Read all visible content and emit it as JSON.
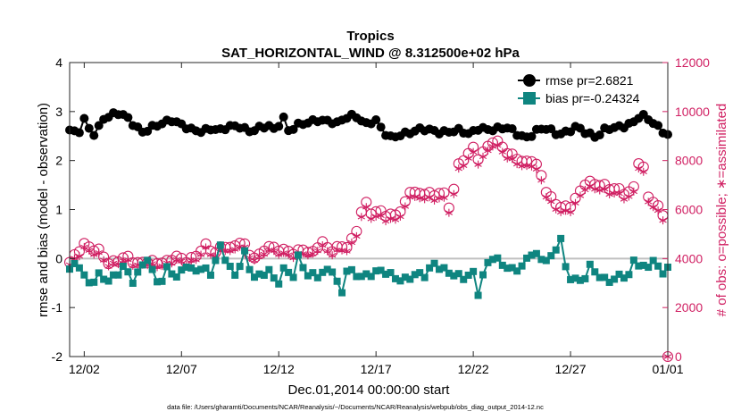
{
  "chart_data": {
    "type": "line",
    "title": "Tropics",
    "subtitle": "SAT_HORIZONTAL_WIND @ 8.312500e+02 hPa",
    "xlabel": "Dec.01,2014 00:00:00 start",
    "ylabel": "rmse and bias (model - observation)",
    "y2label": "# of obs: o=possible; ∗=assimilated",
    "x_ticks": [
      "12/02",
      "12/07",
      "12/12",
      "12/17",
      "12/22",
      "12/27",
      "01/01"
    ],
    "x_tick_days": [
      1,
      6,
      11,
      16,
      21,
      26,
      31
    ],
    "xlim": [
      0.25,
      31.0
    ],
    "ylim": [
      -2,
      4
    ],
    "y_ticks": [
      "-2",
      "-1",
      "0",
      "1",
      "2",
      "3",
      "4"
    ],
    "y2lim": [
      0,
      12000
    ],
    "y2_ticks": [
      "0",
      "2000",
      "4000",
      "6000",
      "8000",
      "10000",
      "12000"
    ],
    "zero_line": 0,
    "series": [
      {
        "name": "rmse pr=2.6821",
        "axis": "left",
        "color": "#000000",
        "marker": "circle",
        "anchors": [
          [
            0.25,
            2.6
          ],
          [
            0.6,
            2.55
          ],
          [
            0.9,
            2.65
          ],
          [
            1.05,
            2.95
          ],
          [
            1.3,
            2.6
          ],
          [
            1.6,
            2.55
          ],
          [
            1.9,
            2.85
          ],
          [
            2.3,
            2.9
          ],
          [
            2.7,
            2.95
          ],
          [
            3.1,
            2.9
          ],
          [
            3.5,
            2.75
          ],
          [
            4.0,
            2.6
          ],
          [
            4.5,
            2.7
          ],
          [
            5.0,
            2.75
          ],
          [
            5.5,
            2.8
          ],
          [
            6.0,
            2.72
          ],
          [
            6.5,
            2.65
          ],
          [
            7.0,
            2.62
          ],
          [
            7.5,
            2.65
          ],
          [
            8.0,
            2.6
          ],
          [
            8.5,
            2.68
          ],
          [
            9.0,
            2.7
          ],
          [
            9.5,
            2.62
          ],
          [
            10.0,
            2.68
          ],
          [
            10.5,
            2.7
          ],
          [
            10.9,
            2.55
          ],
          [
            11.15,
            2.95
          ],
          [
            11.5,
            2.6
          ],
          [
            12.0,
            2.75
          ],
          [
            12.5,
            2.8
          ],
          [
            13.0,
            2.82
          ],
          [
            13.5,
            2.78
          ],
          [
            14.0,
            2.75
          ],
          [
            14.5,
            2.9
          ],
          [
            14.9,
            2.95
          ],
          [
            15.5,
            2.75
          ],
          [
            16.0,
            2.8
          ],
          [
            16.4,
            2.55
          ],
          [
            16.8,
            2.45
          ],
          [
            17.3,
            2.55
          ],
          [
            17.8,
            2.6
          ],
          [
            18.3,
            2.65
          ],
          [
            18.8,
            2.6
          ],
          [
            19.3,
            2.55
          ],
          [
            19.8,
            2.6
          ],
          [
            20.3,
            2.65
          ],
          [
            20.8,
            2.55
          ],
          [
            21.3,
            2.65
          ],
          [
            21.8,
            2.6
          ],
          [
            22.3,
            2.65
          ],
          [
            22.8,
            2.7
          ],
          [
            23.3,
            2.55
          ],
          [
            23.8,
            2.45
          ],
          [
            24.3,
            2.6
          ],
          [
            24.8,
            2.65
          ],
          [
            25.3,
            2.55
          ],
          [
            25.8,
            2.6
          ],
          [
            26.3,
            2.7
          ],
          [
            26.8,
            2.55
          ],
          [
            27.3,
            2.45
          ],
          [
            27.8,
            2.65
          ],
          [
            28.3,
            2.7
          ],
          [
            28.8,
            2.72
          ],
          [
            29.3,
            2.78
          ],
          [
            29.6,
            2.92
          ],
          [
            29.9,
            2.85
          ],
          [
            30.3,
            2.75
          ],
          [
            30.7,
            2.62
          ],
          [
            31.0,
            2.55
          ]
        ]
      },
      {
        "name": "bias pr=-0.24324",
        "axis": "left",
        "color": "#0f8580",
        "marker": "square",
        "anchors": [
          [
            0.25,
            -0.25
          ],
          [
            0.7,
            -0.1
          ],
          [
            1.0,
            -0.35
          ],
          [
            1.3,
            -0.5
          ],
          [
            1.7,
            -0.3
          ],
          [
            2.2,
            -0.45
          ],
          [
            2.6,
            -0.4
          ],
          [
            3.0,
            -0.2
          ],
          [
            3.5,
            -0.45
          ],
          [
            3.9,
            -0.2
          ],
          [
            4.2,
            0.1
          ],
          [
            4.5,
            -0.25
          ],
          [
            4.9,
            -0.55
          ],
          [
            5.3,
            -0.2
          ],
          [
            5.8,
            -0.45
          ],
          [
            6.2,
            -0.1
          ],
          [
            6.6,
            -0.25
          ],
          [
            7.0,
            -0.15
          ],
          [
            7.5,
            -0.3
          ],
          [
            8.0,
            0.2
          ],
          [
            8.4,
            -0.15
          ],
          [
            8.8,
            -0.4
          ],
          [
            9.2,
            0.2
          ],
          [
            9.6,
            -0.3
          ],
          [
            10.0,
            -0.35
          ],
          [
            10.5,
            -0.25
          ],
          [
            10.9,
            -0.6
          ],
          [
            11.3,
            -0.2
          ],
          [
            11.7,
            -0.4
          ],
          [
            12.0,
            0.05
          ],
          [
            12.5,
            -0.3
          ],
          [
            13.0,
            -0.35
          ],
          [
            13.4,
            -0.3
          ],
          [
            13.8,
            -0.25
          ],
          [
            14.2,
            -0.8
          ],
          [
            14.5,
            -0.2
          ],
          [
            15.0,
            -0.3
          ],
          [
            15.5,
            -0.35
          ],
          [
            16.0,
            -0.3
          ],
          [
            16.5,
            -0.3
          ],
          [
            17.0,
            -0.4
          ],
          [
            17.5,
            -0.4
          ],
          [
            18.0,
            -0.3
          ],
          [
            18.5,
            -0.35
          ],
          [
            19.0,
            -0.15
          ],
          [
            19.5,
            -0.25
          ],
          [
            20.0,
            -0.3
          ],
          [
            20.5,
            -0.35
          ],
          [
            21.0,
            -0.3
          ],
          [
            21.3,
            -0.8
          ],
          [
            21.6,
            -0.2
          ],
          [
            22.0,
            0.0
          ],
          [
            22.5,
            -0.1
          ],
          [
            23.0,
            -0.2
          ],
          [
            23.5,
            -0.15
          ],
          [
            24.0,
            0.1
          ],
          [
            24.5,
            -0.05
          ],
          [
            25.0,
            0.0
          ],
          [
            25.5,
            0.45
          ],
          [
            25.8,
            -0.3
          ],
          [
            26.2,
            -0.4
          ],
          [
            26.6,
            -0.5
          ],
          [
            27.0,
            -0.2
          ],
          [
            27.4,
            -0.35
          ],
          [
            27.8,
            -0.45
          ],
          [
            28.2,
            -0.4
          ],
          [
            28.6,
            -0.3
          ],
          [
            29.0,
            -0.35
          ],
          [
            29.3,
            0.0
          ],
          [
            29.6,
            -0.2
          ],
          [
            29.9,
            -0.25
          ],
          [
            30.3,
            0.0
          ],
          [
            30.6,
            -0.3
          ],
          [
            31.0,
            -0.15
          ]
        ]
      },
      {
        "name": "possible obs",
        "axis": "right",
        "color": "#d01f62",
        "marker": "open-circle",
        "anchors": [
          [
            0.25,
            3800
          ],
          [
            0.7,
            4300
          ],
          [
            1.0,
            4600
          ],
          [
            1.4,
            4450
          ],
          [
            1.8,
            4350
          ],
          [
            2.3,
            3750
          ],
          [
            2.8,
            3900
          ],
          [
            3.2,
            4050
          ],
          [
            3.7,
            3800
          ],
          [
            4.2,
            3950
          ],
          [
            4.7,
            3850
          ],
          [
            5.2,
            3800
          ],
          [
            5.7,
            4050
          ],
          [
            6.2,
            3900
          ],
          [
            6.7,
            4100
          ],
          [
            7.2,
            4600
          ],
          [
            7.7,
            4200
          ],
          [
            8.2,
            4500
          ],
          [
            8.6,
            4350
          ],
          [
            9.1,
            4800
          ],
          [
            9.5,
            4200
          ],
          [
            9.9,
            4050
          ],
          [
            10.4,
            4500
          ],
          [
            10.8,
            4350
          ],
          [
            11.3,
            4300
          ],
          [
            11.8,
            4250
          ],
          [
            12.3,
            4450
          ],
          [
            12.7,
            4200
          ],
          [
            13.2,
            4700
          ],
          [
            13.6,
            4250
          ],
          [
            14.1,
            4450
          ],
          [
            14.6,
            4550
          ],
          [
            15.0,
            5200
          ],
          [
            15.4,
            6400
          ],
          [
            15.8,
            5800
          ],
          [
            16.2,
            5900
          ],
          [
            16.6,
            5700
          ],
          [
            17.0,
            5800
          ],
          [
            17.4,
            6100
          ],
          [
            17.8,
            6900
          ],
          [
            18.2,
            6600
          ],
          [
            18.6,
            6700
          ],
          [
            19.0,
            6500
          ],
          [
            19.4,
            6800
          ],
          [
            19.8,
            6000
          ],
          [
            20.2,
            7800
          ],
          [
            20.6,
            8200
          ],
          [
            21.0,
            8500
          ],
          [
            21.3,
            8000
          ],
          [
            21.6,
            8400
          ],
          [
            22.0,
            8750
          ],
          [
            22.4,
            8700
          ],
          [
            22.8,
            8300
          ],
          [
            23.2,
            8200
          ],
          [
            23.6,
            7900
          ],
          [
            24.0,
            8000
          ],
          [
            24.4,
            7600
          ],
          [
            24.8,
            6600
          ],
          [
            25.2,
            6300
          ],
          [
            25.6,
            6100
          ],
          [
            26.0,
            6200
          ],
          [
            26.4,
            6600
          ],
          [
            26.8,
            7100
          ],
          [
            27.2,
            7000
          ],
          [
            27.6,
            7000
          ],
          [
            28.0,
            6900
          ],
          [
            28.4,
            6900
          ],
          [
            28.8,
            6700
          ],
          [
            29.2,
            6700
          ],
          [
            29.6,
            8300
          ],
          [
            30.0,
            6500
          ],
          [
            30.4,
            6200
          ],
          [
            30.8,
            5800
          ],
          [
            31.0,
            0
          ]
        ]
      },
      {
        "name": "assimilated obs",
        "axis": "right",
        "color": "#d01f62",
        "marker": "asterisk",
        "anchors": [
          [
            0.25,
            3700
          ],
          [
            0.7,
            4100
          ],
          [
            1.0,
            4450
          ],
          [
            1.4,
            4300
          ],
          [
            1.8,
            4200
          ],
          [
            2.3,
            3650
          ],
          [
            2.8,
            3800
          ],
          [
            3.2,
            3900
          ],
          [
            3.7,
            3700
          ],
          [
            4.2,
            3850
          ],
          [
            4.7,
            3700
          ],
          [
            5.2,
            3700
          ],
          [
            5.7,
            3900
          ],
          [
            6.2,
            3800
          ],
          [
            6.7,
            3950
          ],
          [
            7.2,
            4450
          ],
          [
            7.7,
            4050
          ],
          [
            8.2,
            4350
          ],
          [
            8.6,
            4200
          ],
          [
            9.1,
            4650
          ],
          [
            9.5,
            4100
          ],
          [
            9.9,
            3950
          ],
          [
            10.4,
            4350
          ],
          [
            10.8,
            4200
          ],
          [
            11.3,
            4150
          ],
          [
            11.8,
            4100
          ],
          [
            12.3,
            4300
          ],
          [
            12.7,
            4100
          ],
          [
            13.2,
            4550
          ],
          [
            13.6,
            4100
          ],
          [
            14.1,
            4300
          ],
          [
            14.6,
            4400
          ],
          [
            15.0,
            5000
          ],
          [
            15.4,
            6200
          ],
          [
            15.8,
            5600
          ],
          [
            16.2,
            5700
          ],
          [
            16.6,
            5500
          ],
          [
            17.0,
            5600
          ],
          [
            17.4,
            5900
          ],
          [
            17.8,
            6700
          ],
          [
            18.2,
            6400
          ],
          [
            18.6,
            6500
          ],
          [
            19.0,
            6300
          ],
          [
            19.4,
            6600
          ],
          [
            19.8,
            5800
          ],
          [
            20.2,
            7600
          ],
          [
            20.6,
            8000
          ],
          [
            21.0,
            8300
          ],
          [
            21.3,
            7800
          ],
          [
            21.6,
            8200
          ],
          [
            22.0,
            8600
          ],
          [
            22.4,
            8500
          ],
          [
            22.8,
            8100
          ],
          [
            23.2,
            8000
          ],
          [
            23.6,
            7700
          ],
          [
            24.0,
            7800
          ],
          [
            24.4,
            7400
          ],
          [
            24.8,
            6400
          ],
          [
            25.2,
            6100
          ],
          [
            25.6,
            5900
          ],
          [
            26.0,
            6000
          ],
          [
            26.4,
            6400
          ],
          [
            26.8,
            6900
          ],
          [
            27.2,
            6800
          ],
          [
            27.6,
            6800
          ],
          [
            28.0,
            6700
          ],
          [
            28.4,
            6700
          ],
          [
            28.8,
            6500
          ],
          [
            29.2,
            6500
          ],
          [
            29.6,
            8100
          ],
          [
            30.0,
            6300
          ],
          [
            30.4,
            6000
          ],
          [
            30.8,
            5600
          ],
          [
            31.0,
            0
          ]
        ]
      }
    ],
    "legend": [
      "rmse pr=2.6821",
      "bias pr=-0.24324"
    ],
    "legend_position": "top-right",
    "footnote": "data file: /Users/gharamti/Documents/NCAR/Reanalysis/~/Documents/NCAR/Reanalysis/webpub/obs_diag_output_2014-12.nc"
  }
}
